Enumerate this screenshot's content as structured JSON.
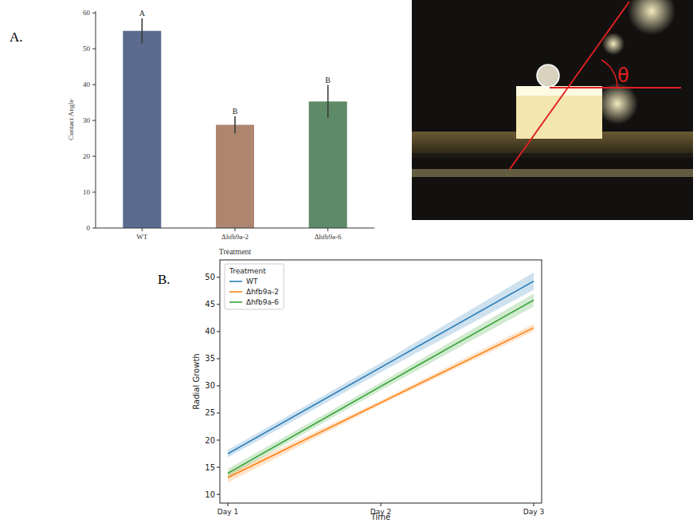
{
  "panel_labels": [
    "A.",
    "B."
  ],
  "photo": {
    "angle_symbol": "θ"
  },
  "chart_data": [
    {
      "type": "bar",
      "categories": [
        "WT",
        "Δhfb9a-2",
        "Δhfb9a-6"
      ],
      "values": [
        55,
        28.8,
        35.3
      ],
      "errors": [
        3.5,
        2.4,
        4.6
      ],
      "annotations": [
        "A",
        "B",
        "B"
      ],
      "colors": [
        "#5b6b8e",
        "#ae8670",
        "#5e8a68"
      ],
      "xlabel": "Treatment",
      "ylabel": "Contact Angle",
      "ylim": [
        0,
        60.5
      ],
      "yticks": [
        0,
        10,
        20,
        30,
        40,
        50,
        60
      ],
      "grid": false
    },
    {
      "type": "line",
      "categories": [
        "Day 1",
        "Day 2",
        "Day 3"
      ],
      "series": [
        {
          "name": "WT",
          "color": "#1f77b4",
          "values": [
            17.5,
            33.4,
            49.3
          ],
          "lower": [
            16.8,
            32.5,
            47.7
          ],
          "upper": [
            18.2,
            34.2,
            50.9
          ]
        },
        {
          "name": "Δhfb9a-2",
          "color": "#ff7f0e",
          "values": [
            13.1,
            26.9,
            40.7
          ],
          "lower": [
            12.2,
            26.5,
            40.1
          ],
          "upper": [
            13.9,
            27.3,
            41.4
          ]
        },
        {
          "name": "Δhfb9a-6",
          "color": "#2ca02c",
          "values": [
            13.9,
            29.9,
            45.8
          ],
          "lower": [
            13.2,
            29.2,
            44.6
          ],
          "upper": [
            14.7,
            30.6,
            47.0
          ]
        }
      ],
      "xlabel": "Time",
      "ylabel": "Radial Growth",
      "legend_title": "Treatment",
      "legend": "upper left",
      "ylim": [
        8.4,
        53.2
      ],
      "yticks": [
        10,
        15,
        20,
        25,
        30,
        35,
        40,
        45,
        50
      ],
      "grid": false
    }
  ]
}
